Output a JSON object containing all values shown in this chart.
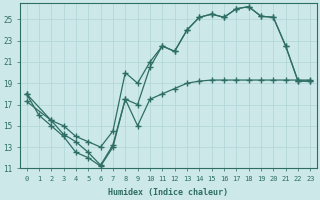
{
  "title": "",
  "xlabel": "Humidex (Indice chaleur)",
  "ylabel": "",
  "xlim": [
    -0.5,
    23.5
  ],
  "ylim": [
    11,
    26.5
  ],
  "xticks": [
    0,
    1,
    2,
    3,
    4,
    5,
    6,
    7,
    8,
    9,
    10,
    11,
    12,
    13,
    14,
    15,
    16,
    17,
    18,
    19,
    20,
    21,
    22,
    23
  ],
  "yticks": [
    11,
    13,
    15,
    17,
    19,
    21,
    23,
    25
  ],
  "bg_color": "#cce8e8",
  "grid_color": "#b0d4d4",
  "line_color": "#2e6e64",
  "line1_x": [
    0,
    1,
    2,
    3,
    4,
    5,
    6,
    7,
    8,
    9,
    10,
    11,
    12,
    13,
    14,
    15,
    16,
    17,
    18,
    19,
    20,
    21,
    22,
    23
  ],
  "line1_y": [
    18,
    16,
    15,
    14,
    12.5,
    12,
    11.2,
    13,
    17.5,
    17,
    20.5,
    22.5,
    22,
    24,
    25.2,
    25.5,
    25.2,
    26,
    26.2,
    25.3,
    25.2,
    22.5,
    19.2,
    19.2
  ],
  "line2_x": [
    0,
    2,
    3,
    4,
    5,
    6,
    7,
    8,
    9,
    10,
    11,
    12,
    13,
    14,
    15,
    16,
    17,
    18,
    19,
    20,
    21,
    22,
    23
  ],
  "line2_y": [
    18,
    15.5,
    15,
    14,
    13.5,
    13,
    14.5,
    20,
    19,
    21,
    22.5,
    22,
    24,
    25.2,
    25.5,
    25.2,
    26,
    26.2,
    25.3,
    25.2,
    22.5,
    19.2,
    19.2
  ],
  "line3_x": [
    0,
    2,
    3,
    4,
    5,
    6,
    7,
    8,
    9,
    10,
    11,
    12,
    13,
    14,
    15,
    16,
    17,
    18,
    19,
    20,
    21,
    22,
    23
  ],
  "line3_y": [
    17.3,
    15.5,
    14.2,
    13.5,
    12.5,
    11.3,
    13.2,
    17.5,
    15,
    17.5,
    18,
    18.5,
    19,
    19.2,
    19.3,
    19.3,
    19.3,
    19.3,
    19.3,
    19.3,
    19.3,
    19.3,
    19.3
  ]
}
